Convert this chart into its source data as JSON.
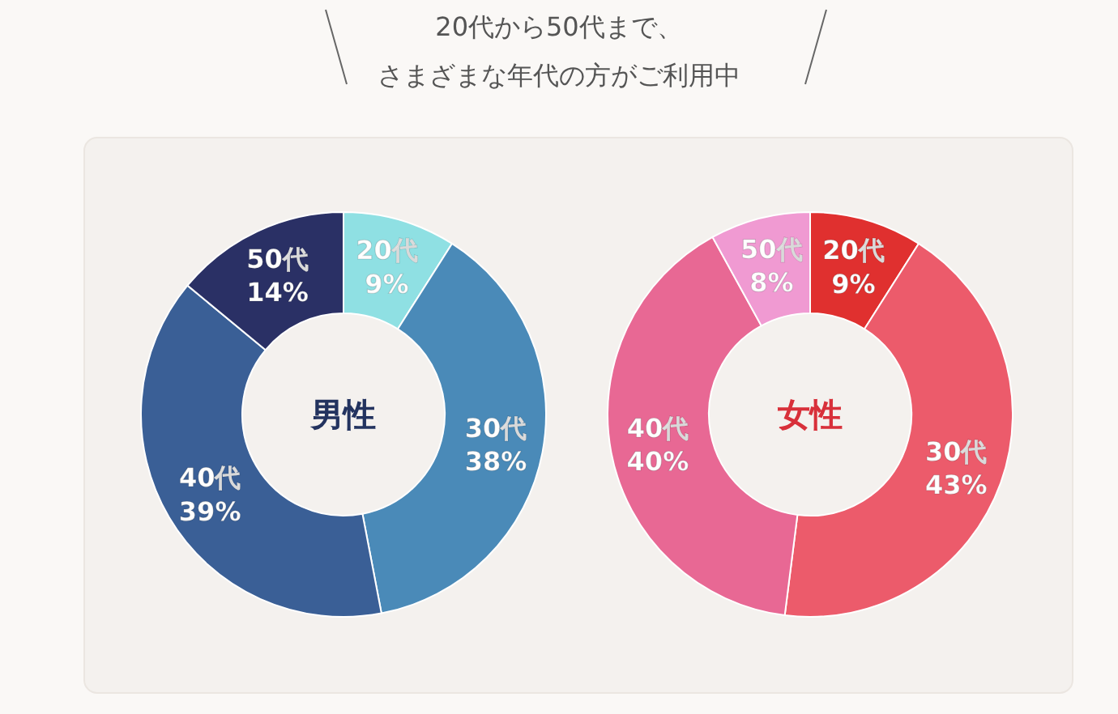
{
  "chart_data": [
    {
      "type": "other",
      "title": "20代から50代まで、",
      "subtitle": "さまざまな年代の方がご利用中"
    },
    {
      "type": "donut",
      "title": "男性",
      "categories": [
        "20代",
        "30代",
        "40代",
        "50代"
      ],
      "values": [
        9,
        38,
        39,
        14
      ],
      "colors": [
        "#8fe0e3",
        "#4a8ab8",
        "#3a5f96",
        "#2a3065"
      ],
      "value_labels": [
        "9%",
        "38%",
        "39%",
        "14%"
      ]
    },
    {
      "type": "donut",
      "title": "女性",
      "categories": [
        "20代",
        "30代",
        "40代",
        "50代"
      ],
      "values": [
        9,
        43,
        40,
        8
      ],
      "colors": [
        "#e0302f",
        "#ec5b6b",
        "#e86894",
        "#f09ad2"
      ],
      "value_labels": [
        "9%",
        "43%",
        "40%",
        "8%"
      ]
    }
  ]
}
